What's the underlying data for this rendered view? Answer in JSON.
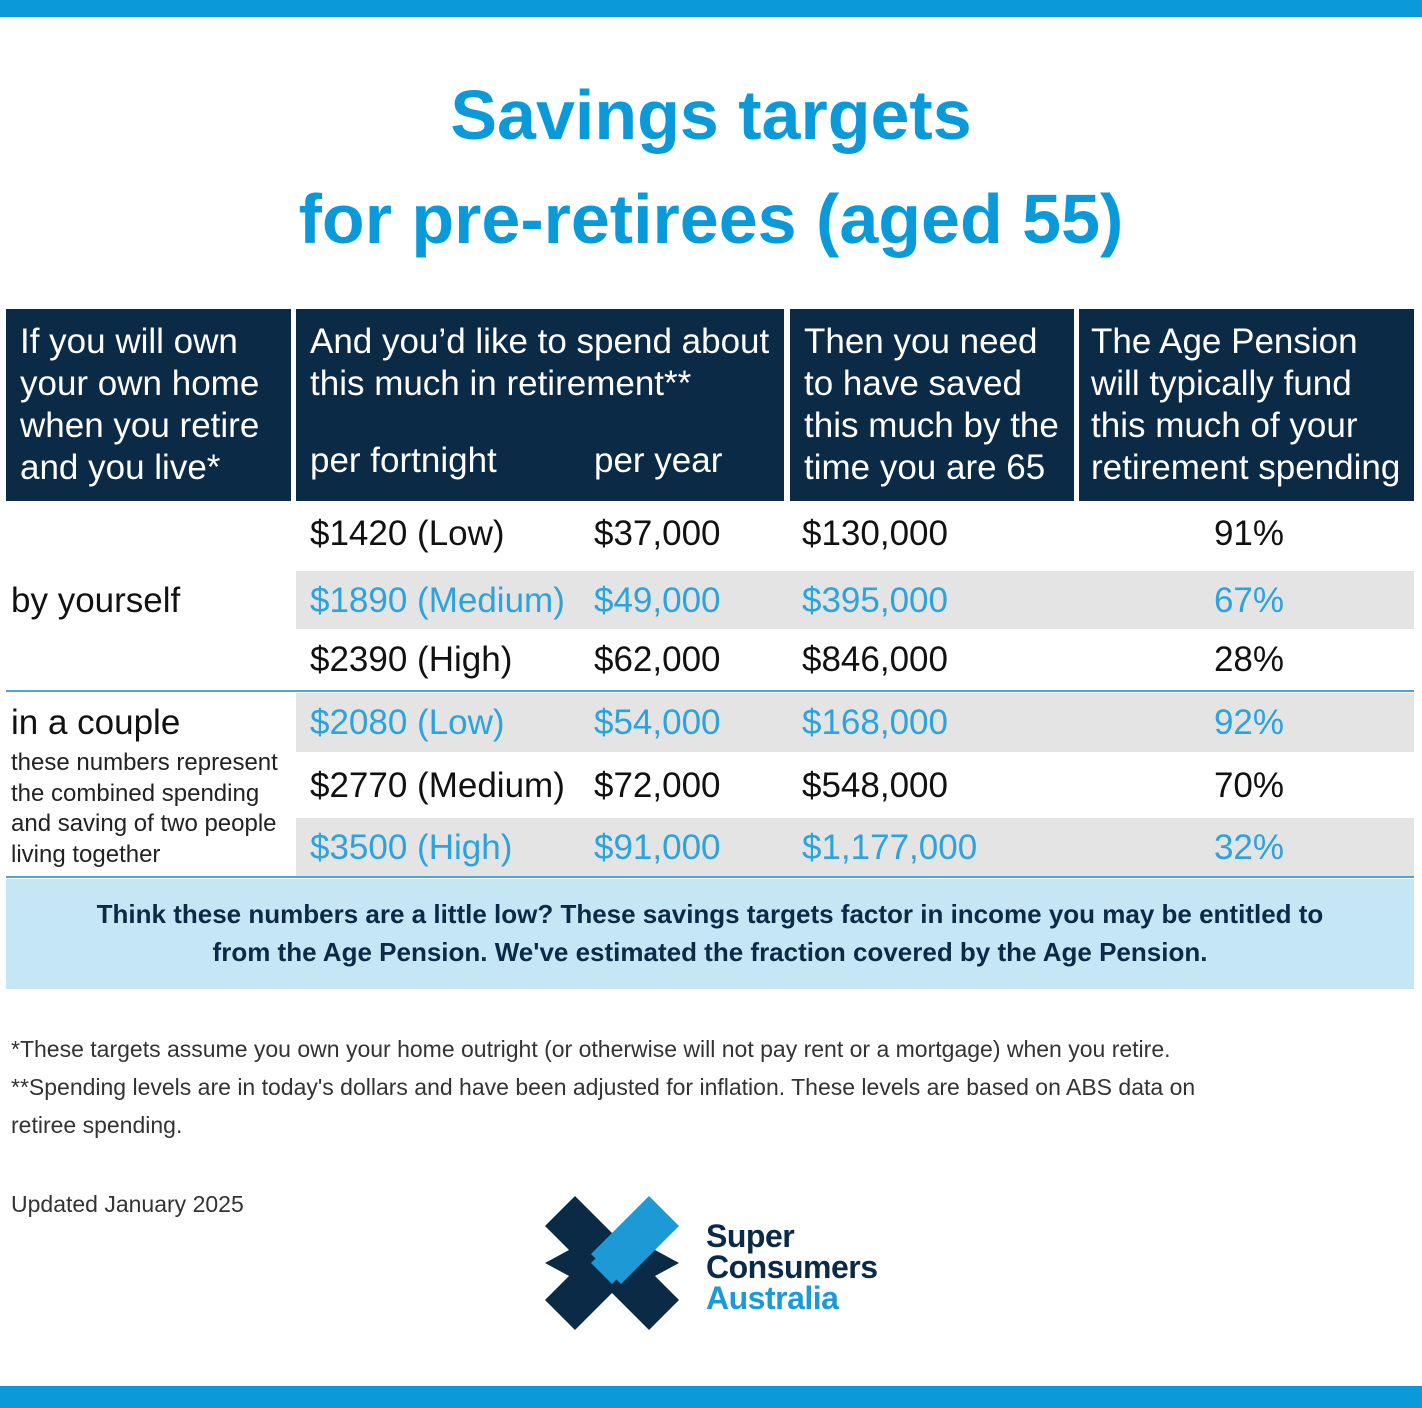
{
  "title": {
    "line1": "Savings targets",
    "line2": "for pre-retirees (aged 55)"
  },
  "table": {
    "headers": {
      "col1": [
        "If you will own",
        "your own home",
        "when you retire",
        "and you live*"
      ],
      "col2": [
        "And you’d like to spend about",
        "this much in retirement**"
      ],
      "col2_sub_fortnight": "per fortnight",
      "col2_sub_year": "per year",
      "col3": [
        "Then you need",
        "to have saved",
        "this much by the",
        "time you are 65"
      ],
      "col4": [
        "The Age Pension",
        "will typically fund",
        "this much of your",
        "retirement spending"
      ]
    },
    "groups": {
      "single": {
        "label": "by yourself"
      },
      "couple": {
        "label": "in a couple",
        "note": "these numbers represent the combined spending and saving of two people living together"
      }
    },
    "rows": [
      {
        "fortnight": "$1420 (Low)",
        "year": "$37,000",
        "saved": "$130,000",
        "pension": "91%"
      },
      {
        "fortnight": "$1890 (Medium)",
        "year": "$49,000",
        "saved": "$395,000",
        "pension": "67%"
      },
      {
        "fortnight": "$2390 (High)",
        "year": "$62,000",
        "saved": "$846,000",
        "pension": "28%"
      },
      {
        "fortnight": "$2080 (Low)",
        "year": "$54,000",
        "saved": "$168,000",
        "pension": "92%"
      },
      {
        "fortnight": "$2770 (Medium)",
        "year": "$72,000",
        "saved": "$548,000",
        "pension": "70%"
      },
      {
        "fortnight": "$3500 (High)",
        "year": "$91,000",
        "saved": "$1,177,000",
        "pension": "32%"
      }
    ]
  },
  "callout": {
    "line1": "Think these numbers are a little low? These savings targets factor in income you may be entitled to",
    "line2": "from the Age Pension. We've estimated the fraction covered by the Age Pension."
  },
  "footnotes": {
    "note1": "*These targets assume you own your home outright (or otherwise will not pay rent or a mortgage) when you retire.",
    "note2_line1": "**Spending levels are in today's dollars and have been adjusted for inflation. These levels are based on ABS data on",
    "note2_line2": "retiree spending.",
    "updated": "Updated January 2025"
  },
  "brand": {
    "line1": "Super",
    "line2": "Consumers",
    "line3": "Australia",
    "logo_icon": "eight-point-star-icon"
  },
  "colors": {
    "accent_blue": "#0a9ad9",
    "header_navy": "#0b2a46",
    "alt_row_gray": "#e4e4e4",
    "callout_bg": "#c5e7f5"
  }
}
